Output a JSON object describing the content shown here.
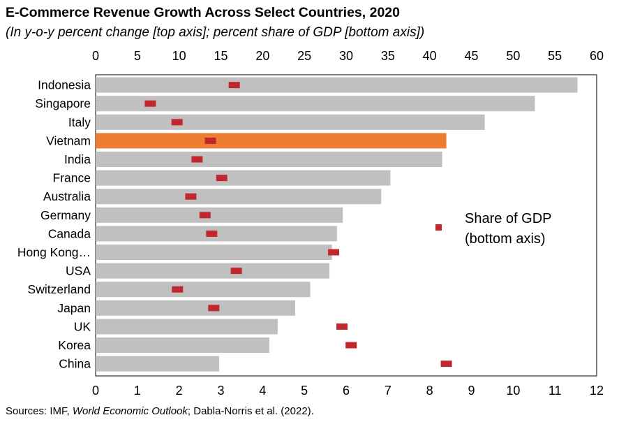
{
  "title": "E-Commerce Revenue Growth Across Select Countries, 2020",
  "subtitle": "(In y-o-y percent change [top axis]; percent share of GDP [bottom axis])",
  "source": {
    "prefix": "Sources: IMF, ",
    "italic": "World Economic Outlook",
    "suffix": "; Dabla-Norris et al. (2022)."
  },
  "legend": {
    "line1": "Share of GDP",
    "line2": "(bottom axis)"
  },
  "colors": {
    "bar": "#c0c0c0",
    "highlight": "#ed7d31",
    "marker": "#c0282d"
  },
  "chart_data": {
    "type": "bar",
    "orientation": "horizontal",
    "title": "E-Commerce Revenue Growth Across Select Countries, 2020",
    "subtitle": "(In y-o-y percent change [top axis]; percent share of GDP [bottom axis])",
    "categories": [
      "Indonesia",
      "Singapore",
      "Italy",
      "Vietnam",
      "India",
      "France",
      "Australia",
      "Germany",
      "Canada",
      "Hong Kong…",
      "USA",
      "Switzerland",
      "Japan",
      "UK",
      "Korea",
      "China"
    ],
    "highlight_category": "Vietnam",
    "top_axis": {
      "range": [
        0,
        60
      ],
      "ticks": [
        0,
        5,
        10,
        15,
        20,
        25,
        30,
        35,
        40,
        45,
        50,
        55,
        60
      ]
    },
    "bottom_axis": {
      "range": [
        0,
        12
      ],
      "ticks": [
        0,
        1,
        2,
        3,
        4,
        5,
        6,
        7,
        8,
        9,
        10,
        11,
        12
      ]
    },
    "series": [
      {
        "axis": "top",
        "mark": "bar",
        "values": [
          57.7,
          52.6,
          46.6,
          42.0,
          41.5,
          35.3,
          34.2,
          29.6,
          28.9,
          28.3,
          28.0,
          25.7,
          23.9,
          21.8,
          20.8,
          14.8
        ]
      },
      {
        "name": "Share of GDP (bottom axis)",
        "axis": "bottom",
        "mark": "marker",
        "values": [
          3.32,
          1.31,
          1.95,
          2.75,
          2.43,
          3.02,
          2.28,
          2.62,
          2.78,
          5.7,
          3.37,
          1.96,
          2.83,
          5.9,
          6.12,
          8.4
        ]
      }
    ],
    "grid": false,
    "legend_position": "right"
  }
}
